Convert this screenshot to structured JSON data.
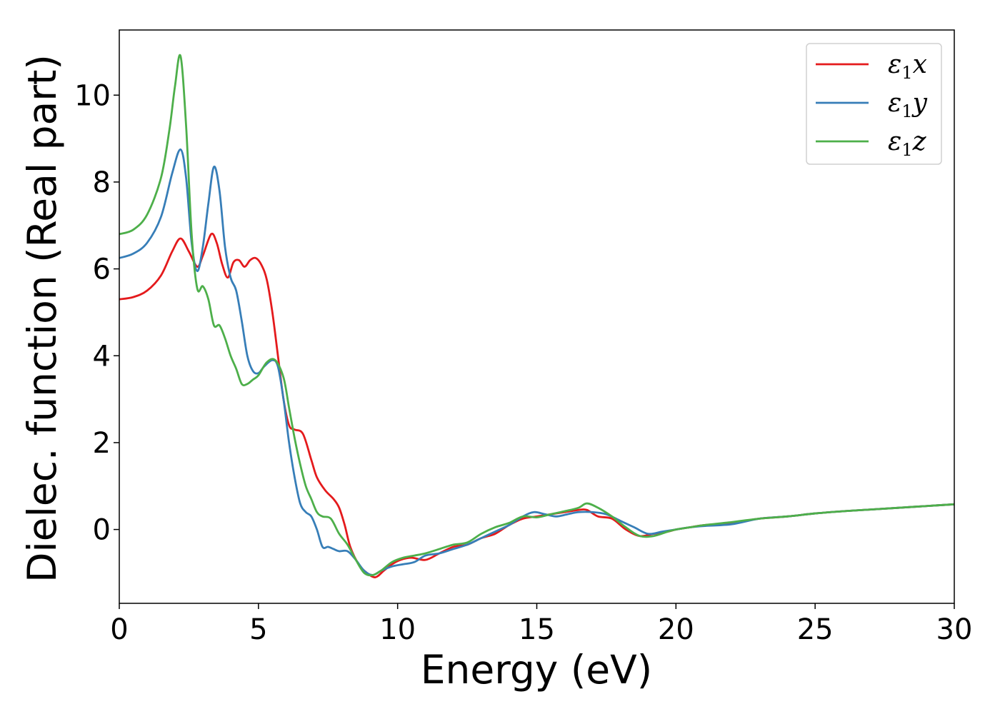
{
  "chart_data": {
    "type": "line",
    "xlabel": "Energy (eV)",
    "ylabel": "Dielec. function (Real part)",
    "xlim": [
      0,
      30
    ],
    "ylim": [
      -1.7,
      11.5
    ],
    "xticks": [
      0,
      5,
      10,
      15,
      20,
      25,
      30
    ],
    "yticks": [
      0,
      2,
      4,
      6,
      8,
      10
    ],
    "legend_position": "top-right",
    "grid": false,
    "series": [
      {
        "name": "ε1x",
        "label_base": "ε",
        "label_sub": "1",
        "label_axis": "x",
        "color": "#e41a1c",
        "x": [
          0,
          0.5,
          1.0,
          1.5,
          1.9,
          2.2,
          2.5,
          2.8,
          3.0,
          3.3,
          3.5,
          3.7,
          3.9,
          4.1,
          4.3,
          4.5,
          4.7,
          4.9,
          5.1,
          5.3,
          5.5,
          5.7,
          5.9,
          6.1,
          6.3,
          6.6,
          6.9,
          7.1,
          7.4,
          7.7,
          7.9,
          8.1,
          8.3,
          8.6,
          8.9,
          9.2,
          9.5,
          9.8,
          10.1,
          10.5,
          11.0,
          11.5,
          12.0,
          12.5,
          13.0,
          13.5,
          14.0,
          14.5,
          15.0,
          15.5,
          16.0,
          16.5,
          16.8,
          17.2,
          17.7,
          18.2,
          18.7,
          19.2,
          19.7,
          20.0,
          20.5,
          21.0,
          22.0,
          23.0,
          24.0,
          25.0,
          26.0,
          27.0,
          28.0,
          29.0,
          30.0
        ],
        "y": [
          5.3,
          5.35,
          5.5,
          5.85,
          6.4,
          6.7,
          6.4,
          6.05,
          6.3,
          6.8,
          6.6,
          6.1,
          5.8,
          6.15,
          6.2,
          6.05,
          6.2,
          6.25,
          6.1,
          5.75,
          5.0,
          4.0,
          3.0,
          2.4,
          2.3,
          2.2,
          1.6,
          1.2,
          0.9,
          0.7,
          0.5,
          0.1,
          -0.4,
          -0.8,
          -1.0,
          -1.1,
          -0.95,
          -0.8,
          -0.7,
          -0.65,
          -0.7,
          -0.55,
          -0.4,
          -0.35,
          -0.2,
          -0.1,
          0.1,
          0.25,
          0.3,
          0.35,
          0.4,
          0.45,
          0.45,
          0.3,
          0.25,
          0.0,
          -0.15,
          -0.1,
          -0.05,
          0.0,
          0.05,
          0.1,
          0.15,
          0.25,
          0.3,
          0.37,
          0.42,
          0.46,
          0.5,
          0.54,
          0.58
        ]
      },
      {
        "name": "ε1y",
        "label_base": "ε",
        "label_sub": "1",
        "label_axis": "y",
        "color": "#377eb8",
        "x": [
          0,
          0.5,
          1.0,
          1.5,
          1.9,
          2.2,
          2.4,
          2.6,
          2.8,
          3.0,
          3.2,
          3.4,
          3.6,
          3.8,
          4.0,
          4.2,
          4.4,
          4.6,
          4.8,
          5.0,
          5.2,
          5.5,
          5.7,
          5.9,
          6.1,
          6.3,
          6.5,
          6.7,
          6.9,
          7.1,
          7.3,
          7.5,
          7.7,
          7.9,
          8.2,
          8.5,
          8.8,
          9.1,
          9.4,
          9.8,
          10.2,
          10.6,
          11.0,
          11.5,
          12.0,
          12.5,
          13.0,
          13.5,
          14.0,
          14.5,
          14.9,
          15.3,
          15.7,
          16.1,
          16.5,
          17.0,
          17.5,
          18.0,
          18.5,
          19.0,
          19.5,
          20.0,
          20.5,
          21.0,
          22.0,
          23.0,
          24.0,
          25.0,
          26.0,
          27.0,
          28.0,
          29.0,
          30.0
        ],
        "y": [
          6.25,
          6.35,
          6.6,
          7.2,
          8.2,
          8.75,
          8.1,
          6.6,
          5.95,
          6.5,
          7.5,
          8.35,
          7.8,
          6.5,
          5.8,
          5.5,
          4.8,
          4.0,
          3.65,
          3.6,
          3.75,
          3.9,
          3.75,
          3.0,
          2.0,
          1.2,
          0.6,
          0.4,
          0.3,
          0.0,
          -0.4,
          -0.4,
          -0.45,
          -0.5,
          -0.5,
          -0.7,
          -0.95,
          -1.05,
          -0.95,
          -0.85,
          -0.8,
          -0.75,
          -0.6,
          -0.55,
          -0.45,
          -0.35,
          -0.2,
          -0.05,
          0.1,
          0.3,
          0.4,
          0.35,
          0.3,
          0.35,
          0.4,
          0.4,
          0.35,
          0.2,
          0.05,
          -0.1,
          -0.05,
          0.0,
          0.05,
          0.08,
          0.12,
          0.25,
          0.3,
          0.37,
          0.42,
          0.46,
          0.5,
          0.54,
          0.58
        ]
      },
      {
        "name": "ε1z",
        "label_base": "ε",
        "label_sub": "1",
        "label_axis": "z",
        "color": "#4daf4a",
        "x": [
          0,
          0.5,
          1.0,
          1.5,
          1.8,
          2.0,
          2.2,
          2.4,
          2.6,
          2.8,
          3.0,
          3.2,
          3.4,
          3.6,
          3.8,
          4.0,
          4.2,
          4.4,
          4.6,
          4.8,
          5.0,
          5.3,
          5.6,
          5.9,
          6.1,
          6.3,
          6.5,
          6.7,
          6.9,
          7.1,
          7.3,
          7.6,
          7.9,
          8.2,
          8.5,
          8.8,
          9.1,
          9.4,
          9.8,
          10.2,
          10.6,
          11.0,
          11.5,
          12.0,
          12.5,
          13.0,
          13.5,
          14.0,
          14.5,
          15.0,
          15.5,
          16.0,
          16.5,
          16.8,
          17.2,
          17.7,
          18.2,
          18.7,
          19.2,
          19.7,
          20.0,
          20.5,
          21.0,
          22.0,
          23.0,
          24.0,
          25.0,
          26.0,
          27.0,
          28.0,
          29.0,
          30.0
        ],
        "y": [
          6.8,
          6.9,
          7.25,
          8.1,
          9.2,
          10.2,
          10.9,
          9.3,
          6.8,
          5.55,
          5.6,
          5.3,
          4.7,
          4.7,
          4.4,
          4.0,
          3.7,
          3.35,
          3.35,
          3.45,
          3.55,
          3.85,
          3.9,
          3.5,
          2.8,
          2.1,
          1.5,
          1.0,
          0.7,
          0.4,
          0.3,
          0.25,
          -0.1,
          -0.35,
          -0.7,
          -1.0,
          -1.05,
          -0.95,
          -0.75,
          -0.65,
          -0.6,
          -0.55,
          -0.45,
          -0.35,
          -0.3,
          -0.1,
          0.05,
          0.15,
          0.3,
          0.28,
          0.35,
          0.42,
          0.5,
          0.6,
          0.5,
          0.3,
          0.05,
          -0.15,
          -0.15,
          -0.05,
          0.0,
          0.05,
          0.1,
          0.17,
          0.25,
          0.3,
          0.37,
          0.42,
          0.46,
          0.5,
          0.54,
          0.58
        ]
      }
    ]
  }
}
